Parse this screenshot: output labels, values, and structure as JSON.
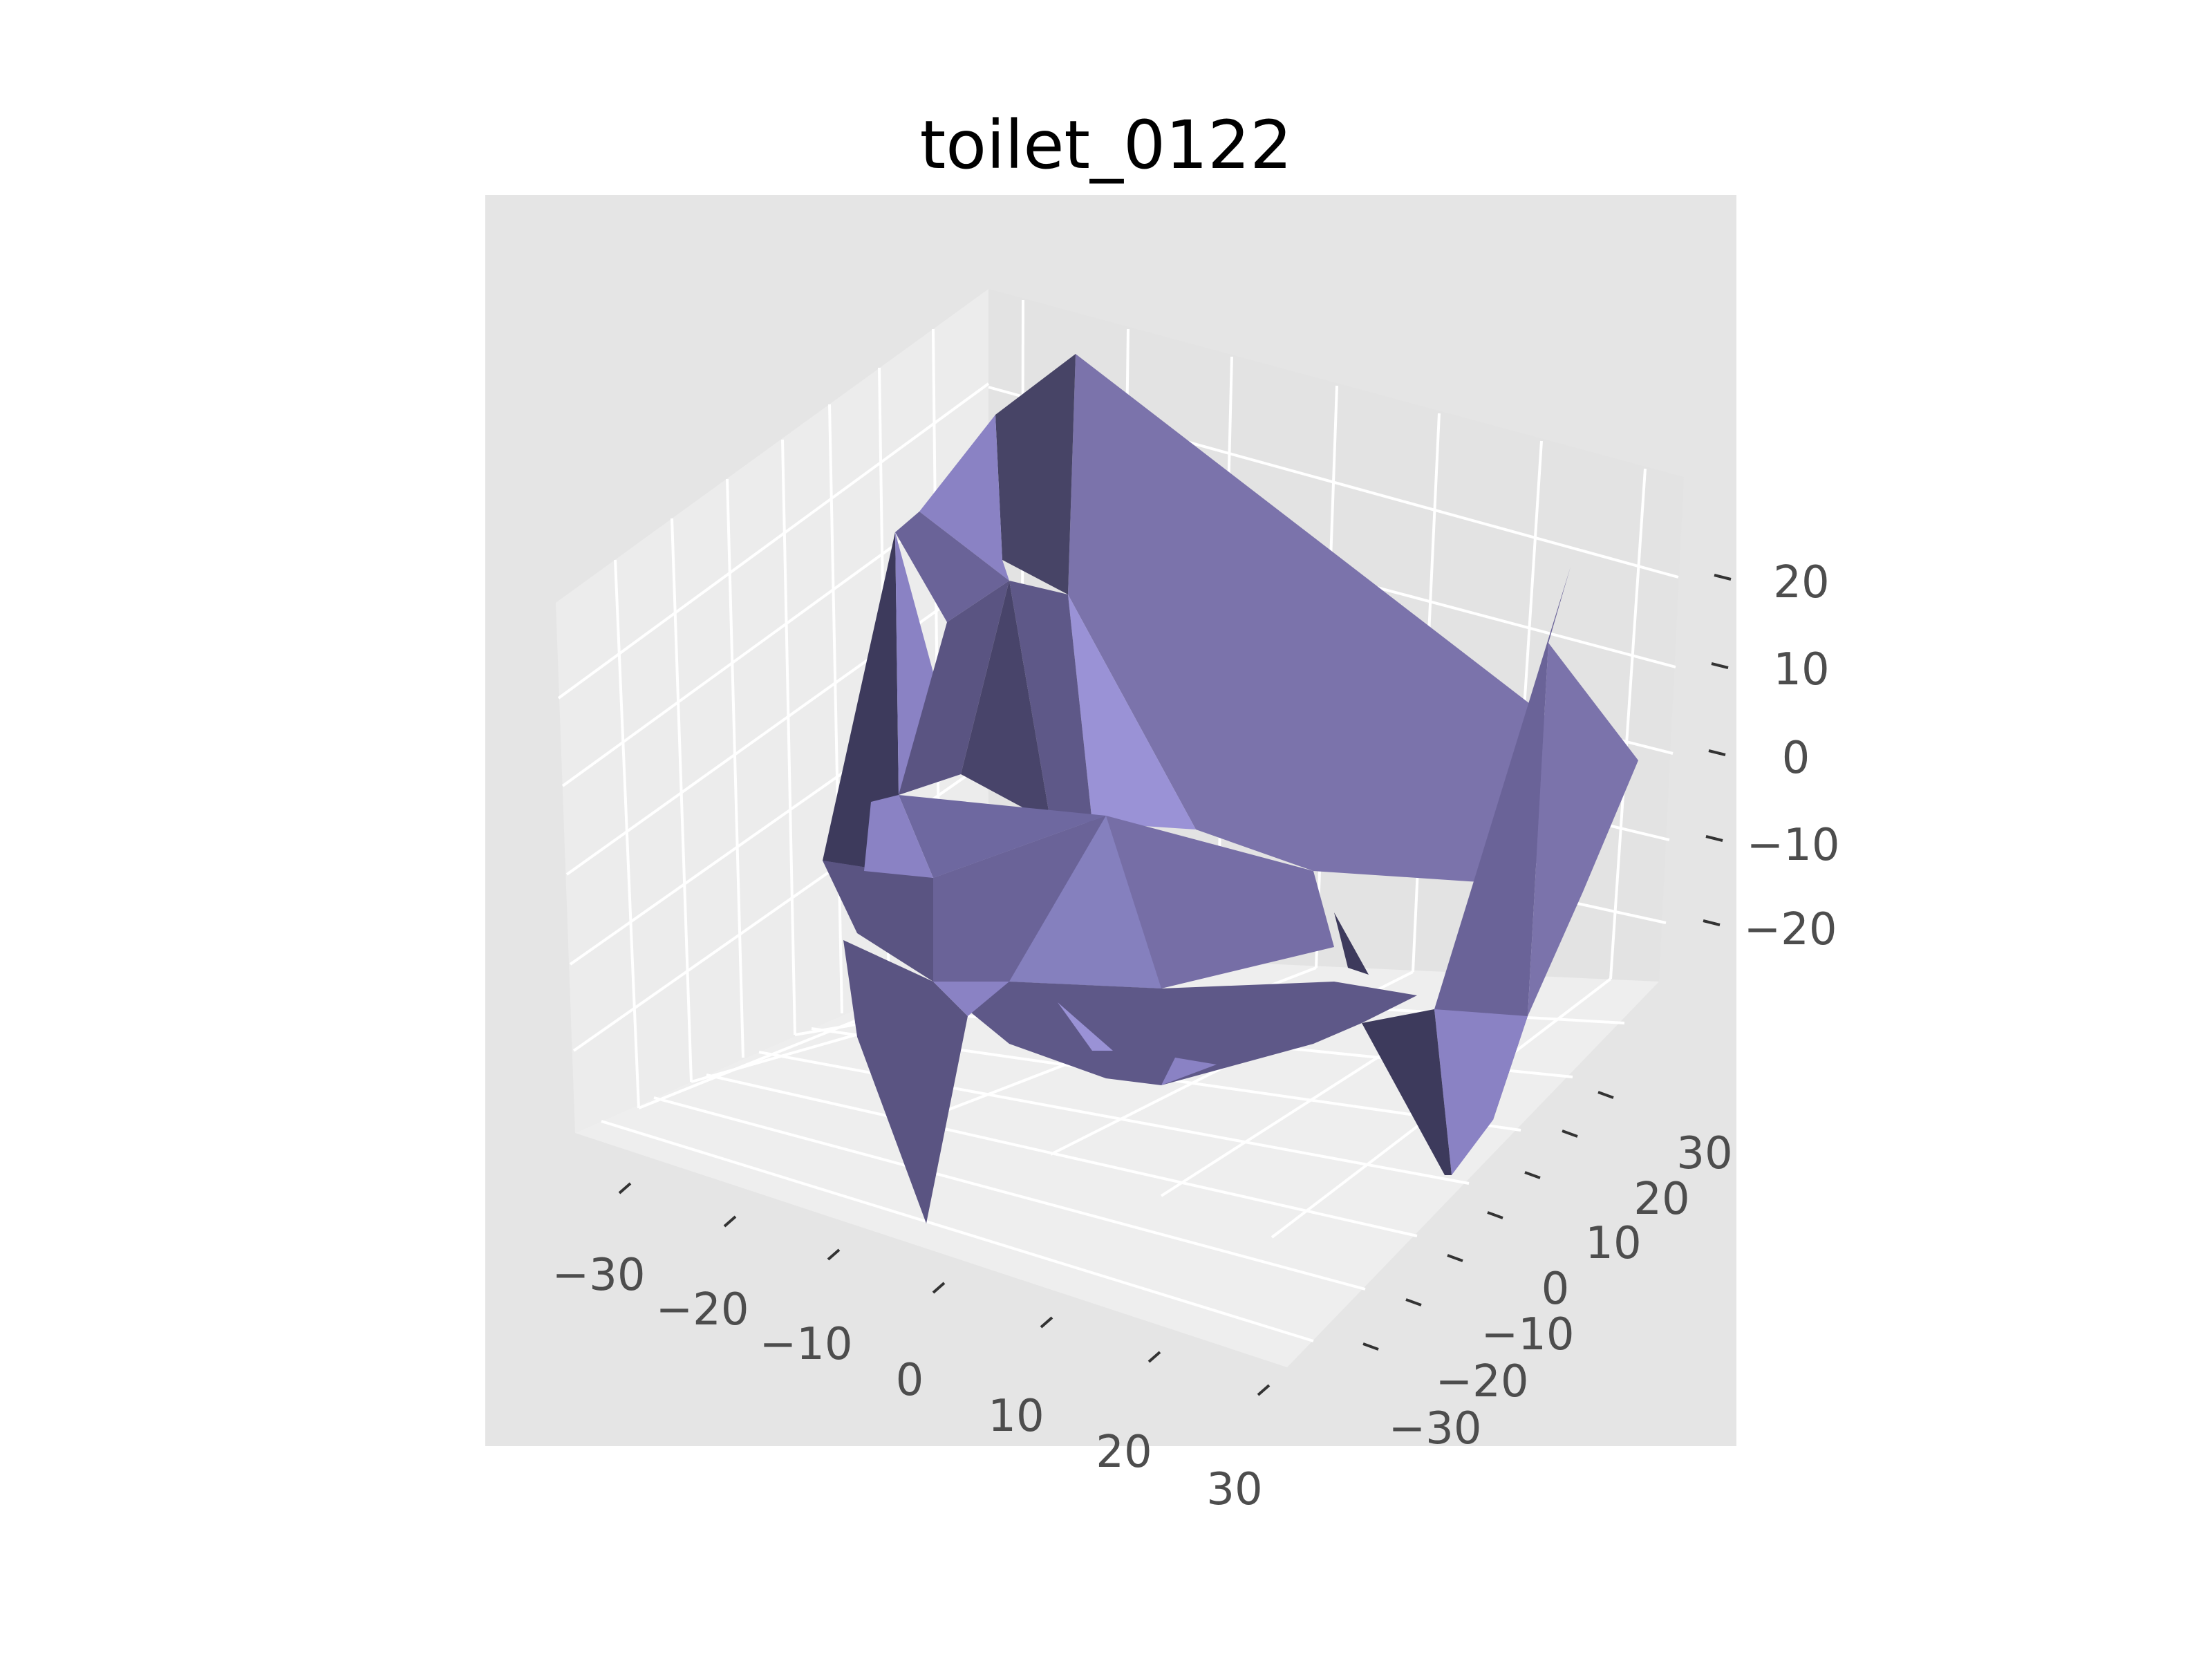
{
  "chart_data": {
    "type": "surface3d",
    "title": "toilet_0122",
    "xlabel": "",
    "ylabel": "",
    "zlabel": "",
    "x_ticks": [
      -30,
      -20,
      -10,
      0,
      10,
      20,
      30
    ],
    "y_ticks": [
      -30,
      -20,
      -10,
      0,
      10,
      20,
      30
    ],
    "z_ticks": [
      -20,
      -10,
      0,
      10,
      20
    ],
    "x_tick_labels": [
      "−30",
      "−20",
      "−10",
      "0",
      "10",
      "20",
      "30"
    ],
    "y_tick_labels": [
      "−30",
      "−20",
      "−10",
      "0",
      "10",
      "20",
      "30"
    ],
    "z_tick_labels": [
      "−20",
      "−10",
      "0",
      "10",
      "20"
    ],
    "xlim": [
      -35,
      35
    ],
    "ylim": [
      -35,
      35
    ],
    "zlim": [
      -30,
      30
    ],
    "grid": true,
    "legend": "none",
    "colors": {
      "surface": "#8a83c8",
      "surface_dark": "#3d3a5c",
      "surface_mid": "#5a5482",
      "surface_light": "#9c94d8",
      "axes_background": "#e5e5e5",
      "pane_left": "#eaeaea",
      "pane_right": "#e2e2e2",
      "pane_floor": "#ebebeb",
      "grid": "#ffffff"
    }
  }
}
